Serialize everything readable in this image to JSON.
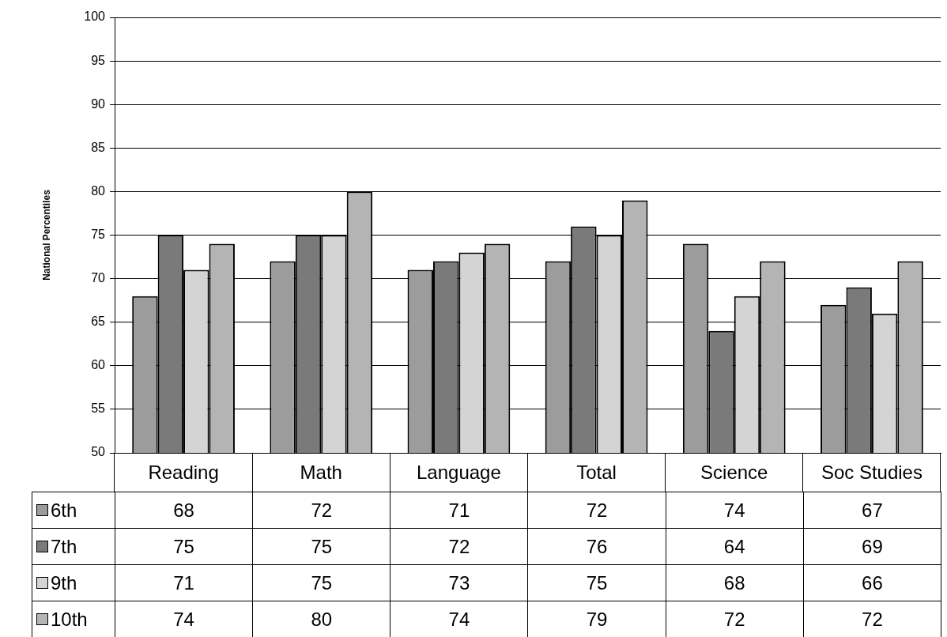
{
  "chart_data": {
    "type": "bar",
    "ylabel": "National Percentiles",
    "categories": [
      "Reading",
      "Math",
      "Language",
      "Total",
      "Science",
      "Soc Studies"
    ],
    "series": [
      {
        "name": "6th",
        "color": "#9c9c9c",
        "values": [
          68,
          72,
          71,
          72,
          74,
          67
        ]
      },
      {
        "name": "7th",
        "color": "#7a7a7a",
        "values": [
          75,
          75,
          72,
          76,
          64,
          69
        ]
      },
      {
        "name": "9th",
        "color": "#d4d4d4",
        "values": [
          71,
          75,
          73,
          75,
          68,
          66
        ]
      },
      {
        "name": "10th",
        "color": "#b4b4b4",
        "values": [
          74,
          80,
          74,
          79,
          72,
          72
        ]
      }
    ],
    "ylim": [
      50,
      100
    ],
    "yticks": [
      50,
      55,
      60,
      65,
      70,
      75,
      80,
      85,
      90,
      95,
      100
    ],
    "grid": "y",
    "legend": "bottom left",
    "data_labels": true
  }
}
